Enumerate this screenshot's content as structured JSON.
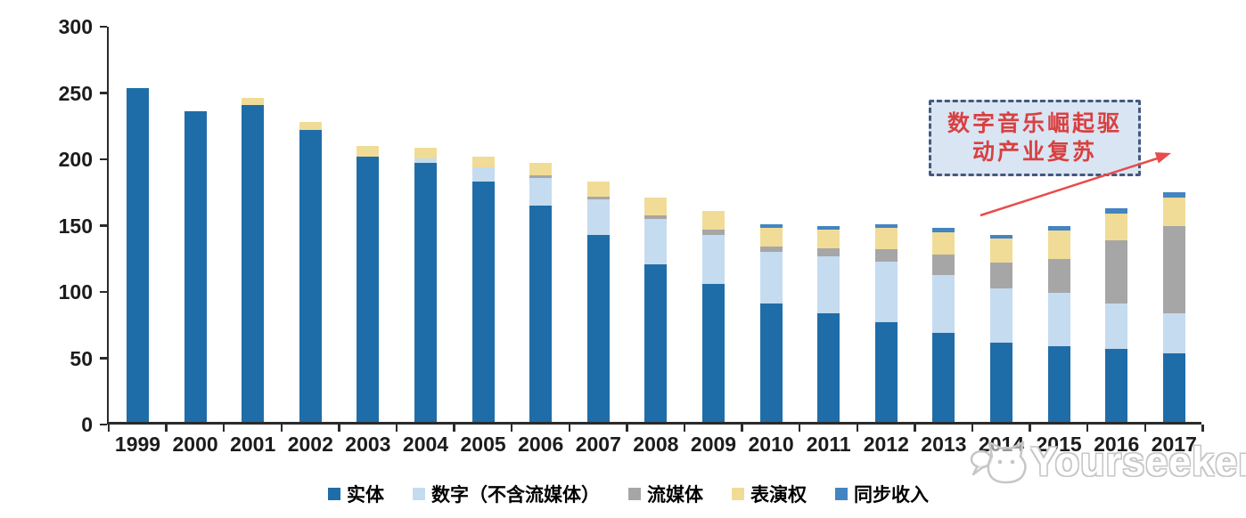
{
  "chart_data": {
    "type": "bar",
    "stacked": true,
    "title": "",
    "xlabel": "",
    "ylabel": "",
    "ylim": [
      0,
      300
    ],
    "yticks": [
      0,
      50,
      100,
      150,
      200,
      250,
      300
    ],
    "grid": false,
    "legend_position": "bottom",
    "categories": [
      "1999",
      "2000",
      "2001",
      "2002",
      "2003",
      "2004",
      "2005",
      "2006",
      "2007",
      "2008",
      "2009",
      "2010",
      "2011",
      "2012",
      "2013",
      "2014",
      "2015",
      "2016",
      "2017"
    ],
    "series": [
      {
        "key": "physical",
        "name": "实体",
        "color": "#1F6DA8",
        "values": [
          252,
          234,
          239,
          220,
          200,
          195,
          181,
          163,
          141,
          119,
          104,
          89,
          82,
          75,
          67,
          60,
          57,
          55,
          52
        ]
      },
      {
        "key": "digital-excl-streaming",
        "name": "数字（不含流媒体）",
        "color": "#C5DBF0",
        "values": [
          0,
          0,
          0,
          0,
          0,
          4,
          11,
          21,
          27,
          34,
          37,
          39,
          43,
          46,
          44,
          41,
          40,
          34,
          30
        ]
      },
      {
        "key": "streaming",
        "name": "流媒体",
        "color": "#A6A6A6",
        "values": [
          0,
          0,
          0,
          0,
          0,
          0,
          0,
          2,
          2,
          3,
          4,
          4,
          6,
          9,
          15,
          19,
          26,
          48,
          66
        ]
      },
      {
        "key": "performance-rights",
        "name": "表演权",
        "color": "#F0DC96",
        "values": [
          0,
          0,
          5,
          6,
          8,
          8,
          8,
          9,
          11,
          13,
          14,
          14,
          14,
          16,
          17,
          18,
          21,
          20,
          21
        ]
      },
      {
        "key": "sync-revenue",
        "name": "同步收入",
        "color": "#4484C2",
        "values": [
          0,
          0,
          0,
          0,
          0,
          0,
          0,
          0,
          0,
          0,
          0,
          3,
          3,
          3,
          3,
          3,
          4,
          4,
          4
        ]
      }
    ]
  },
  "annotation": {
    "line1": "数字音乐崛起驱",
    "line2": "动产业复苏",
    "text_color": "#D94040",
    "border_color": "#46587E",
    "fill_color": "#D9E5F3",
    "arrow_color": "#E84C4C"
  },
  "watermark": {
    "label": "Yourseeker"
  }
}
